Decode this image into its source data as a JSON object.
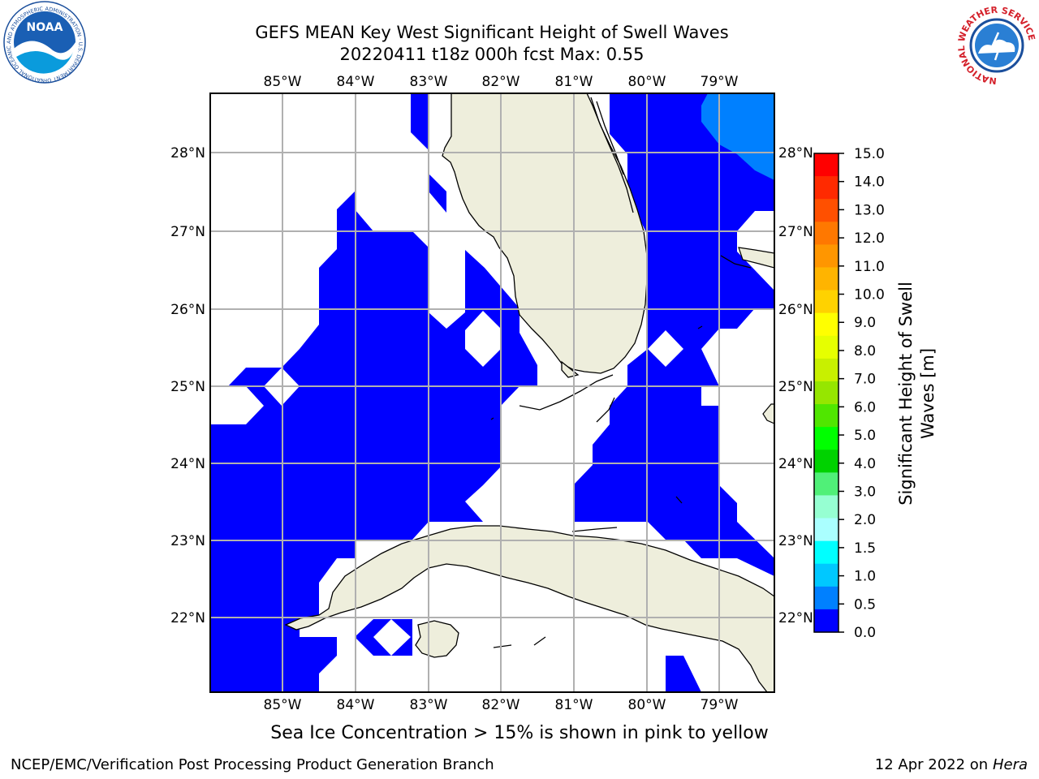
{
  "header": {
    "title_line1": "GEFS MEAN Key West Significant Height of Swell Waves",
    "title_line2": "20220411 t18z 000h fcst   Max: 0.55"
  },
  "logos": {
    "left_name": "NOAA",
    "left_ring_text": "NATIONAL OCEANIC AND ATMOSPHERIC ADMINISTRATION · U.S. DEPARTMENT OF COMMERCE",
    "right_ring_text": "NATIONAL WEATHER SERVICE"
  },
  "map": {
    "lon_labels": [
      "85°W",
      "84°W",
      "83°W",
      "82°W",
      "81°W",
      "80°W",
      "79°W"
    ],
    "lat_labels": [
      "28°N",
      "27°N",
      "26°N",
      "25°N",
      "24°N",
      "23°N",
      "22°N"
    ],
    "colors": {
      "land": "#eeeedc",
      "swell_0_05": "#0000ff",
      "swell_05_10": "#0080ff",
      "grid": "#b0b0b0"
    }
  },
  "colorbar": {
    "label_line1": "Significant Height of Swell",
    "label_line2": "Waves [m]",
    "ticks": [
      "15.0",
      "14.0",
      "13.0",
      "12.0",
      "11.0",
      "10.0",
      "9.0",
      "8.0",
      "7.0",
      "6.0",
      "5.0",
      "4.0",
      "3.0",
      "2.0",
      "1.5",
      "1.0",
      "0.5",
      "0.0"
    ],
    "colors_top_to_bottom": [
      "#ff0000",
      "#ff2a00",
      "#ff5000",
      "#ff7800",
      "#ff9600",
      "#ffb400",
      "#ffd200",
      "#ffff00",
      "#e6ff00",
      "#c8f000",
      "#96e600",
      "#50e600",
      "#00ff00",
      "#00d200",
      "#50f078",
      "#96ffd2",
      "#aaffff",
      "#00ffff",
      "#00c8ff",
      "#0080ff",
      "#0000ff"
    ]
  },
  "notes": {
    "ice": "Sea Ice Concentration > 15% is shown in pink to yellow"
  },
  "footer": {
    "left": "NCEP/EMC/Verification Post Processing Product Generation Branch",
    "right_date": "12 Apr 2022 on ",
    "right_host": "Hera"
  }
}
